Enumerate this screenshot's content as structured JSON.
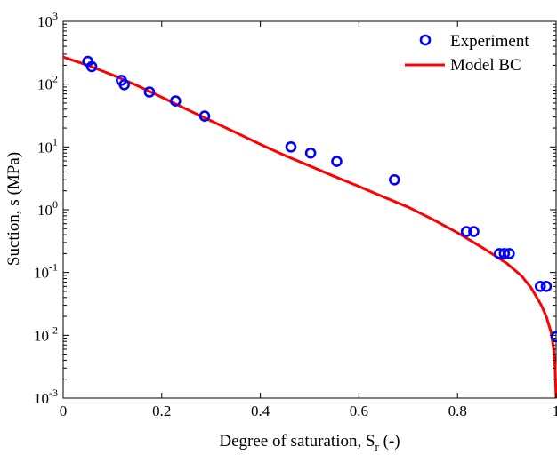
{
  "chart_data": {
    "type": "scatter",
    "title": "",
    "xlabel": "Degree of saturation, S",
    "xlabel_sub": "r",
    "xlabel_tail": " (-)",
    "ylabel": "Suction, s (MPa)",
    "xlim": [
      0,
      1
    ],
    "ylim": [
      0.001,
      1000
    ],
    "y_scale": "log",
    "grid": false,
    "legend_position": "top-right",
    "x_ticks": [
      {
        "value": 0,
        "label": "0"
      },
      {
        "value": 0.2,
        "label": "0.2"
      },
      {
        "value": 0.4,
        "label": "0.4"
      },
      {
        "value": 0.6,
        "label": "0.6"
      },
      {
        "value": 0.8,
        "label": "0.8"
      },
      {
        "value": 1,
        "label": "1"
      }
    ],
    "y_ticks": [
      {
        "value": 0.001,
        "base": "10",
        "exp": "-3"
      },
      {
        "value": 0.01,
        "base": "10",
        "exp": "-2"
      },
      {
        "value": 0.1,
        "base": "10",
        "exp": "-1"
      },
      {
        "value": 1,
        "base": "10",
        "exp": "0"
      },
      {
        "value": 10,
        "base": "10",
        "exp": "1"
      },
      {
        "value": 100,
        "base": "10",
        "exp": "2"
      },
      {
        "value": 1000,
        "base": "10",
        "exp": "3"
      }
    ],
    "series": [
      {
        "name": "Experiment",
        "kind": "markers",
        "marker": "circle-open",
        "color": "#0000ff",
        "x": [
          0.05,
          0.058,
          0.118,
          0.124,
          0.175,
          0.228,
          0.287,
          0.462,
          0.502,
          0.555,
          0.672,
          0.818,
          0.833,
          0.885,
          0.895,
          0.905,
          0.968,
          0.98,
          1.0
        ],
        "y": [
          230,
          190,
          115,
          98,
          75,
          54,
          31,
          10,
          8,
          5.9,
          3.0,
          0.45,
          0.45,
          0.2,
          0.2,
          0.2,
          0.06,
          0.06,
          0.0095
        ]
      },
      {
        "name": "Model BC",
        "kind": "line",
        "color": "#ff0000",
        "x": [
          0,
          0.05,
          0.1,
          0.15,
          0.2,
          0.25,
          0.3,
          0.35,
          0.4,
          0.45,
          0.5,
          0.55,
          0.6,
          0.65,
          0.7,
          0.75,
          0.8,
          0.85,
          0.9,
          0.93,
          0.95,
          0.97,
          0.98,
          0.99,
          0.995,
          0.998,
          1.0
        ],
        "y": [
          270,
          200,
          140,
          95,
          62,
          40,
          26,
          17,
          11,
          7.3,
          5.0,
          3.4,
          2.35,
          1.6,
          1.1,
          0.7,
          0.43,
          0.25,
          0.14,
          0.088,
          0.056,
          0.03,
          0.02,
          0.011,
          0.006,
          0.003,
          0.001
        ]
      }
    ]
  }
}
